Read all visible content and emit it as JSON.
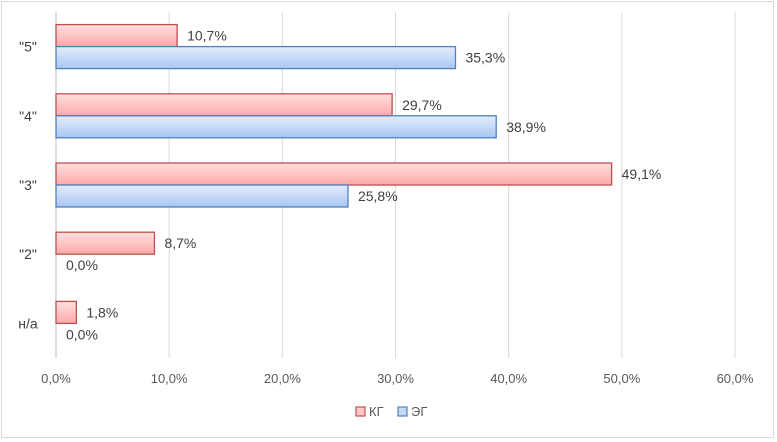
{
  "chart_data": {
    "type": "bar",
    "orientation": "horizontal",
    "title": "",
    "categories": [
      "\"5\"",
      "\"4\"",
      "\"3\"",
      "\"2\"",
      "н/а"
    ],
    "series": [
      {
        "name": "КГ",
        "values": [
          10.7,
          29.7,
          49.1,
          8.7,
          1.8
        ],
        "labels": [
          "10,7%",
          "29,7%",
          "49,1%",
          "8,7%",
          "1,8%"
        ],
        "color": "#c0504d",
        "fill": "#ffc7c7"
      },
      {
        "name": "ЭГ",
        "values": [
          35.3,
          38.9,
          25.8,
          0.0,
          0.0
        ],
        "labels": [
          "35,3%",
          "38,9%",
          "25,8%",
          "0,0%",
          "0,0%"
        ],
        "color": "#4f81bd",
        "fill": "#c5d9f7"
      }
    ],
    "xlim": [
      0,
      60
    ],
    "xticks": [
      0,
      10,
      20,
      30,
      40,
      50,
      60
    ],
    "xtick_labels": [
      "0,0%",
      "10,0%",
      "20,0%",
      "30,0%",
      "40,0%",
      "50,0%",
      "60,0%"
    ],
    "grid": true,
    "legend": "bottom",
    "xlabel": "",
    "ylabel": ""
  }
}
